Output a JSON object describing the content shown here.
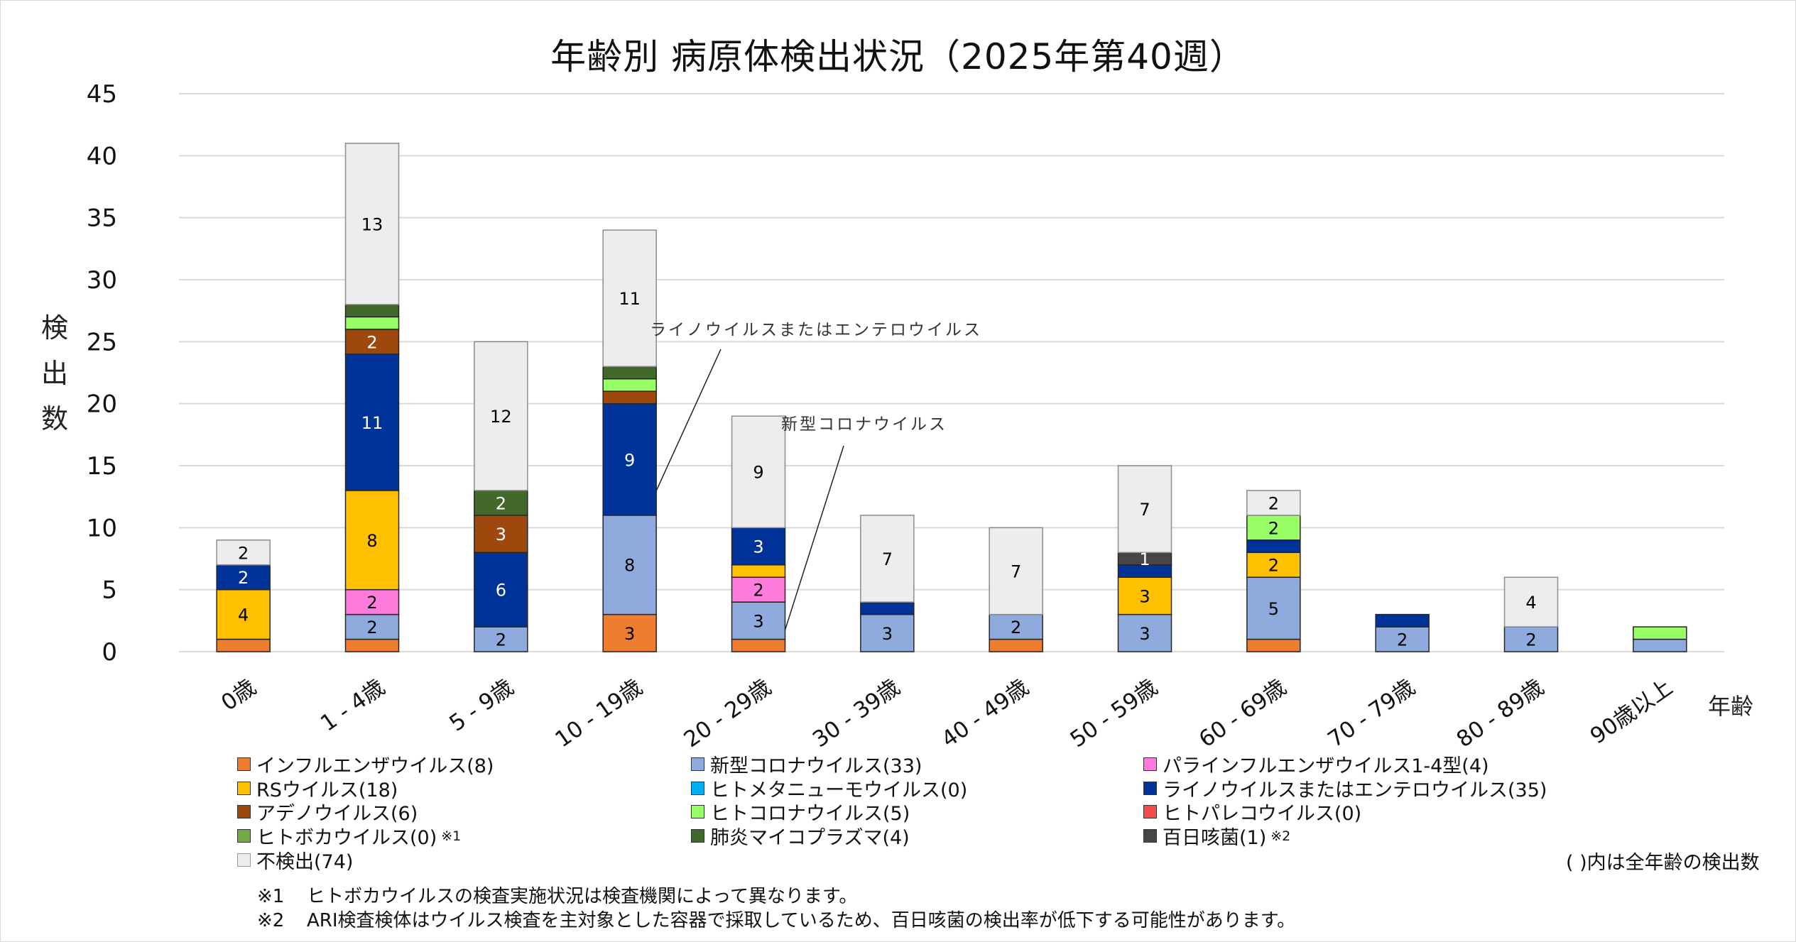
{
  "chart_data": {
    "type": "bar",
    "stacked": true,
    "title": "年齢別 病原体検出状況（2025年第40週）",
    "xlabel": "年齢",
    "ylabel": "検出数",
    "ylim": [
      0,
      45
    ],
    "yticks": [
      0,
      5,
      10,
      15,
      20,
      25,
      30,
      35,
      40,
      45
    ],
    "grid": true,
    "legend_position": "bottom",
    "categories": [
      "0歳",
      "1 - 4歳",
      "5 - 9歳",
      "10 - 19歳",
      "20 - 29歳",
      "30 - 39歳",
      "40 - 49歳",
      "50 - 59歳",
      "60 - 69歳",
      "70 - 79歳",
      "80 - 89歳",
      "90歳以上"
    ],
    "series": [
      {
        "name": "インフルエンザウイルス",
        "total": 8,
        "color": "#ED7D31",
        "label_color": "#000000",
        "values": [
          1,
          1,
          0,
          3,
          1,
          0,
          1,
          0,
          1,
          0,
          0,
          0
        ],
        "labels": [
          null,
          null,
          null,
          3,
          null,
          null,
          null,
          null,
          null,
          null,
          null,
          null
        ]
      },
      {
        "name": "新型コロナウイルス",
        "total": 33,
        "color": "#8FAADC",
        "label_color": "#000000",
        "values": [
          0,
          2,
          2,
          8,
          3,
          3,
          2,
          3,
          5,
          2,
          2,
          1
        ],
        "labels": [
          null,
          2,
          2,
          8,
          3,
          3,
          2,
          3,
          5,
          2,
          2,
          null
        ]
      },
      {
        "name": "パラインフルエンザウイルス1-4型",
        "total": 4,
        "color": "#FF7BDD",
        "label_color": "#000000",
        "values": [
          0,
          2,
          0,
          0,
          2,
          0,
          0,
          0,
          0,
          0,
          0,
          0
        ],
        "labels": [
          null,
          2,
          null,
          null,
          2,
          null,
          null,
          null,
          null,
          null,
          null,
          null
        ]
      },
      {
        "name": "RSウイルス",
        "total": 18,
        "color": "#FFC000",
        "label_color": "#000000",
        "values": [
          4,
          8,
          0,
          0,
          1,
          0,
          0,
          3,
          2,
          0,
          0,
          0
        ],
        "labels": [
          4,
          8,
          null,
          null,
          null,
          null,
          null,
          3,
          2,
          null,
          null,
          null
        ]
      },
      {
        "name": "ヒトメタニューモウイルス",
        "total": 0,
        "color": "#00B0F0",
        "label_color": "#000000",
        "values": [
          0,
          0,
          0,
          0,
          0,
          0,
          0,
          0,
          0,
          0,
          0,
          0
        ],
        "labels": [
          null,
          null,
          null,
          null,
          null,
          null,
          null,
          null,
          null,
          null,
          null,
          null
        ]
      },
      {
        "name": "ライノウイルスまたはエンテロウイルス",
        "total": 35,
        "color": "#003399",
        "label_color": "#FFFFFF",
        "values": [
          2,
          11,
          6,
          9,
          3,
          1,
          0,
          1,
          1,
          1,
          0,
          0
        ],
        "labels": [
          2,
          11,
          6,
          9,
          3,
          null,
          null,
          null,
          null,
          null,
          null,
          null
        ]
      },
      {
        "name": "アデノウイルス",
        "total": 6,
        "color": "#9E480E",
        "label_color": "#FFFFFF",
        "values": [
          0,
          2,
          3,
          1,
          0,
          0,
          0,
          0,
          0,
          0,
          0,
          0
        ],
        "labels": [
          null,
          2,
          3,
          null,
          null,
          null,
          null,
          null,
          null,
          null,
          null,
          null
        ]
      },
      {
        "name": "ヒトコロナウイルス",
        "total": 5,
        "color": "#99FF66",
        "label_color": "#000000",
        "values": [
          0,
          1,
          0,
          1,
          0,
          0,
          0,
          0,
          2,
          0,
          0,
          1
        ],
        "labels": [
          null,
          null,
          null,
          null,
          null,
          null,
          null,
          null,
          2,
          null,
          null,
          null
        ]
      },
      {
        "name": "ヒトパレコウイルス",
        "total": 0,
        "color": "#F24C4C",
        "label_color": "#000000",
        "values": [
          0,
          0,
          0,
          0,
          0,
          0,
          0,
          0,
          0,
          0,
          0,
          0
        ],
        "labels": [
          null,
          null,
          null,
          null,
          null,
          null,
          null,
          null,
          null,
          null,
          null,
          null
        ]
      },
      {
        "name": "ヒトボカウイルス",
        "total": 0,
        "color": "#70AD47",
        "label_color": "#000000",
        "note": "※1",
        "values": [
          0,
          0,
          0,
          0,
          0,
          0,
          0,
          0,
          0,
          0,
          0,
          0
        ],
        "labels": [
          null,
          null,
          null,
          null,
          null,
          null,
          null,
          null,
          null,
          null,
          null,
          null
        ]
      },
      {
        "name": "肺炎マイコプラズマ",
        "total": 4,
        "color": "#43682B",
        "label_color": "#FFFFFF",
        "values": [
          0,
          1,
          2,
          1,
          0,
          0,
          0,
          0,
          0,
          0,
          0,
          0
        ],
        "labels": [
          null,
          null,
          2,
          null,
          null,
          null,
          null,
          null,
          null,
          null,
          null,
          null
        ]
      },
      {
        "name": "百日咳菌",
        "total": 1,
        "color": "#474646",
        "label_color": "#FFFFFF",
        "note": "※2",
        "values": [
          0,
          0,
          0,
          0,
          0,
          0,
          0,
          1,
          0,
          0,
          0,
          0
        ],
        "labels": [
          null,
          null,
          null,
          null,
          null,
          null,
          null,
          1,
          null,
          null,
          null,
          null
        ]
      },
      {
        "name": "不検出",
        "total": 74,
        "color": "#EDEDED",
        "label_color": "#000000",
        "values": [
          2,
          13,
          12,
          11,
          9,
          7,
          7,
          7,
          2,
          0,
          4,
          0
        ],
        "labels": [
          2,
          13,
          12,
          11,
          9,
          7,
          7,
          7,
          2,
          null,
          4,
          null
        ]
      }
    ],
    "annotations": [
      {
        "text": "ライノウイルスまたはエンテロウイルス",
        "category": "10 - 19歳",
        "series": "ライノウイルスまたはエンテロウイルス"
      },
      {
        "text": "新型コロナウイルス",
        "category": "20 - 29歳",
        "series": "新型コロナウイルス"
      }
    ]
  },
  "legend": {
    "items": [
      {
        "label": "インフルエンザウイルス(8)",
        "color": "#ED7D31",
        "note": ""
      },
      {
        "label": "新型コロナウイルス(33)",
        "color": "#8FAADC",
        "note": ""
      },
      {
        "label": "パラインフルエンザウイルス1-4型(4)",
        "color": "#FF7BDD",
        "note": ""
      },
      {
        "label": "RSウイルス(18)",
        "color": "#FFC000",
        "note": ""
      },
      {
        "label": "ヒトメタニューモウイルス(0)",
        "color": "#00B0F0",
        "note": ""
      },
      {
        "label": "ライノウイルスまたはエンテロウイルス(35)",
        "color": "#003399",
        "note": ""
      },
      {
        "label": "アデノウイルス(6)",
        "color": "#9E480E",
        "note": ""
      },
      {
        "label": "ヒトコロナウイルス(5)",
        "color": "#99FF66",
        "note": ""
      },
      {
        "label": "ヒトパレコウイルス(0)",
        "color": "#F24C4C",
        "note": ""
      },
      {
        "label": "ヒトボカウイルス(0)",
        "color": "#70AD47",
        "note": "※1"
      },
      {
        "label": "肺炎マイコプラズマ(4)",
        "color": "#43682B",
        "note": ""
      },
      {
        "label": "百日咳菌(1)",
        "color": "#474646",
        "note": "※2"
      },
      {
        "label": "不検出(74)",
        "color": "#EDEDED",
        "note": ""
      }
    ],
    "note": "( )内は全年齢の検出数"
  },
  "footnotes": [
    {
      "mark": "※1",
      "text": "ヒトボカウイルスの検査実施状況は検査機関によって異なります。"
    },
    {
      "mark": "※2",
      "text": "ARI検査検体はウイルス検査を主対象とした容器で採取しているため、百日咳菌の検出率が低下する可能性があります。"
    }
  ]
}
